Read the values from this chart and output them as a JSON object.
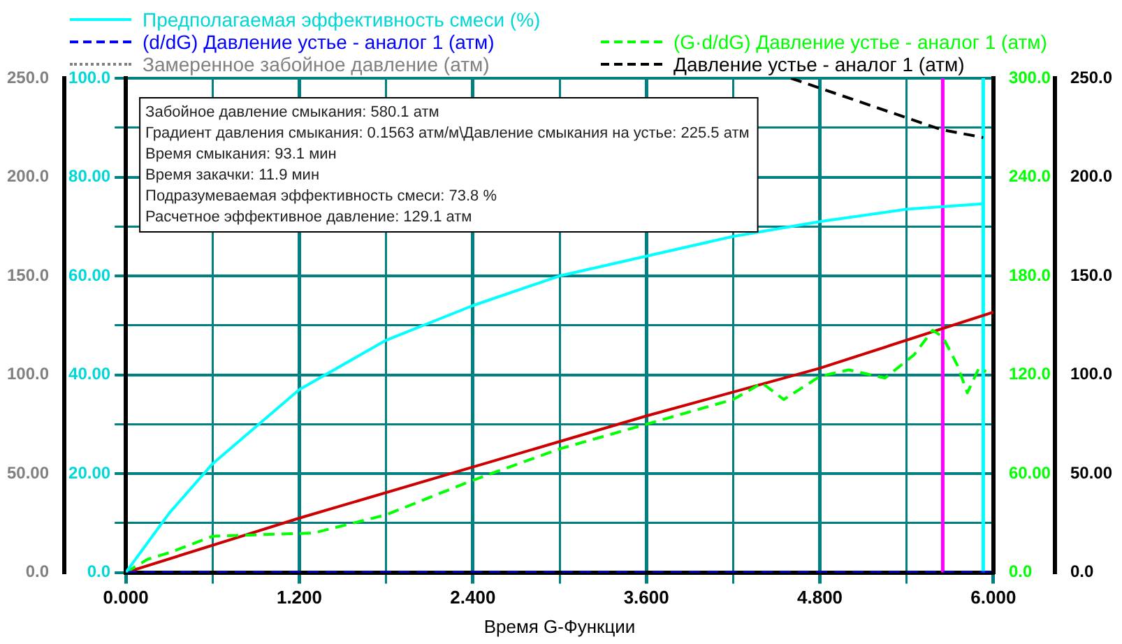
{
  "chart_data": {
    "type": "line",
    "xlabel": "Время G-Функции",
    "xlim": [
      0,
      6.0
    ],
    "xticks": [
      {
        "value": 0,
        "label": "0.000"
      },
      {
        "value": 0.6,
        "label": null
      },
      {
        "value": 1.2,
        "label": "1.200"
      },
      {
        "value": 1.8,
        "label": null
      },
      {
        "value": 2.4,
        "label": "2.400"
      },
      {
        "value": 3.0,
        "label": null
      },
      {
        "value": 3.6,
        "label": "3.600"
      },
      {
        "value": 4.2,
        "label": null
      },
      {
        "value": 4.8,
        "label": "4.800"
      },
      {
        "value": 5.4,
        "label": null
      },
      {
        "value": 6.0,
        "label": "6.000"
      }
    ],
    "ylim": [
      0,
      100
    ],
    "yticks": [
      {
        "value": 0,
        "label": "0.0"
      },
      {
        "value": 10,
        "label": null
      },
      {
        "value": 20,
        "label": "20.00"
      },
      {
        "value": 30,
        "label": null
      },
      {
        "value": 40,
        "label": "40.00"
      },
      {
        "value": 50,
        "label": null
      },
      {
        "value": 60,
        "label": "60.00"
      },
      {
        "value": 70,
        "label": null
      },
      {
        "value": 80,
        "label": "80.00"
      },
      {
        "value": 90,
        "label": null
      },
      {
        "value": 100,
        "label": "100.0"
      }
    ],
    "y2lim": [
      0,
      250
    ],
    "y2ticks": [
      {
        "value": 0,
        "label": "0.0"
      },
      {
        "value": 50,
        "label": "50.00"
      },
      {
        "value": 100,
        "label": "100.0"
      },
      {
        "value": 150,
        "label": "150.0"
      },
      {
        "value": 200,
        "label": "200.0"
      },
      {
        "value": 250,
        "label": "250.0"
      }
    ],
    "y3lim": [
      0,
      300
    ],
    "y3ticks": [
      {
        "value": 0,
        "label": "0.0"
      },
      {
        "value": 60,
        "label": "60.00"
      },
      {
        "value": 120,
        "label": "120.0"
      },
      {
        "value": 180,
        "label": "180.0"
      },
      {
        "value": 240,
        "label": "240.0"
      },
      {
        "value": 300,
        "label": "300.0"
      }
    ],
    "grid": true,
    "legend": "top",
    "marker": "none",
    "series": [
      {
        "name": "Предполагаемая эффективность смеси (%)",
        "color": "#00ffff",
        "line_style": "solid",
        "x": [
          0,
          0.3,
          0.6,
          1.2,
          1.8,
          2.4,
          3.0,
          3.6,
          4.2,
          4.8,
          5.4,
          5.93
        ],
        "values": [
          0,
          12,
          22,
          37,
          47,
          54,
          60,
          64,
          68,
          71,
          73.5,
          74.6
        ]
      },
      {
        "name": "(d/dG) Давление устье - аналог 1 (атм)",
        "color": "#0000ff",
        "axis": "y2",
        "line_style": "dashed",
        "x": [
          0,
          6.0
        ],
        "values": [
          0,
          0
        ]
      },
      {
        "name": "Замеренное забойное давление (атм)",
        "color": "#808080",
        "axis": "y2",
        "line_style": "dotted"
      },
      {
        "name": "(G·d/dG) Давление устье - аналог 1 (атм)",
        "color": "#00ff00",
        "axis": "y3",
        "line_style": "dashed",
        "x": [
          0,
          0.15,
          0.3,
          0.6,
          1.3,
          1.8,
          2.4,
          3.0,
          3.6,
          4.2,
          4.4,
          4.55,
          4.8,
          5.0,
          5.25,
          5.45,
          5.58,
          5.65,
          5.75,
          5.82,
          5.9,
          5.95
        ],
        "values": [
          0,
          8,
          12,
          22,
          24,
          35,
          56,
          75,
          90,
          105,
          115,
          105,
          119,
          123,
          118,
          132,
          147,
          143,
          126,
          109,
          124,
          122
        ]
      },
      {
        "name": "Давление устье - аналог 1 (атм)",
        "color": "#000000",
        "axis": "y2",
        "line_style": "dashed",
        "x": [
          4.6,
          5.64,
          5.93
        ],
        "values": [
          250,
          224,
          220
        ]
      },
      {
        "type": "line",
        "color": "#cc0000",
        "axis": "y3",
        "line_style": "solid",
        "x": [
          0,
          1.2,
          2.4,
          3.6,
          4.8,
          6.0
        ],
        "values": [
          0,
          33,
          64,
          95,
          124,
          158
        ]
      }
    ],
    "ref_lines": [
      {
        "axis": "x",
        "value": 5.65,
        "color": "#ff00ff"
      },
      {
        "axis": "x",
        "value": 5.93,
        "color": "#00ffff"
      }
    ],
    "annotations": [
      "Забойное давление смыкания: 580.1 атм",
      "Градиент давления смыкания: 0.1563 атм/м\\Давление смыкания на устье: 225.5 атм",
      "Время смыкания: 93.1 мин",
      "Время закачки: 11.9 мин",
      "Подразумеваемая эффективность смеси: 73.8 %",
      "Расчетное эффективное давление: 129.1 атм"
    ]
  }
}
